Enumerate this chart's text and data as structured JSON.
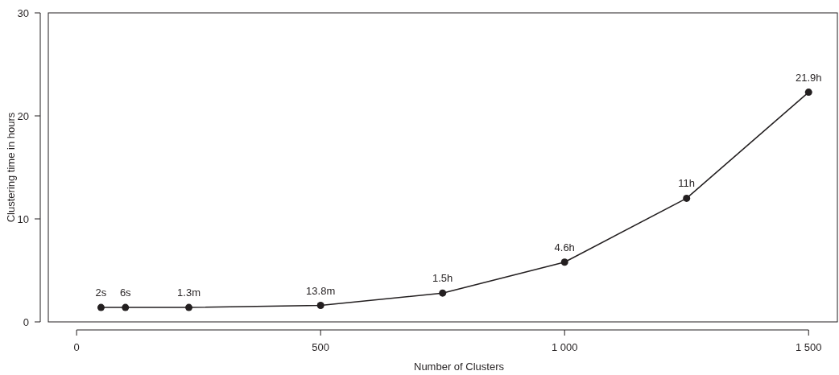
{
  "chart_data": {
    "type": "line",
    "xlabel": "Number of Clusters",
    "ylabel": "Clustering time in hours",
    "x": [
      50,
      100,
      230,
      500,
      750,
      1000,
      1250,
      1500
    ],
    "series": [
      {
        "color": "#231f20",
        "values": [
          1.4,
          1.4,
          1.4,
          1.6,
          2.8,
          5.8,
          12.0,
          22.3
        ]
      }
    ],
    "annotations": [
      {
        "text": "2s",
        "x": 50,
        "y": 1.4
      },
      {
        "text": "6s",
        "x": 100,
        "y": 1.4
      },
      {
        "text": "1.3m",
        "x": 230,
        "y": 1.4
      },
      {
        "text": "13.8m",
        "x": 500,
        "y": 1.6
      },
      {
        "text": "1.5h",
        "x": 750,
        "y": 2.8
      },
      {
        "text": "4.6h",
        "x": 1000,
        "y": 5.8
      },
      {
        "text": "11h",
        "x": 1250,
        "y": 12.0
      },
      {
        "text": "21.9h",
        "x": 1500,
        "y": 22.3
      }
    ],
    "xlim": [
      -58,
      1559
    ],
    "ylim": [
      0,
      30
    ],
    "xticks": [
      0,
      500,
      {
        "value": 1000,
        "label": "1 000"
      },
      {
        "value": 1500,
        "label": "1 500"
      }
    ],
    "yticks": [
      0,
      10,
      20,
      30
    ],
    "marker": "circle",
    "line_style": "solid",
    "grid": false
  }
}
